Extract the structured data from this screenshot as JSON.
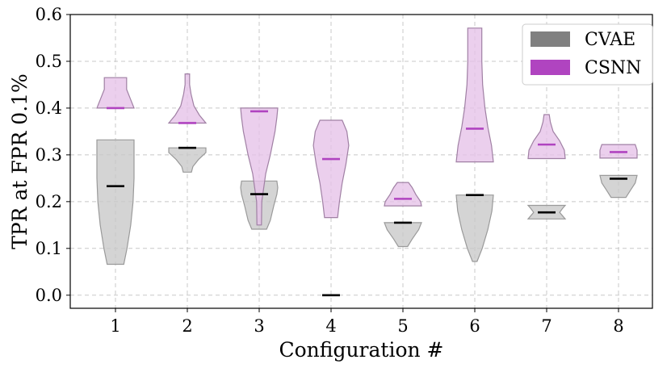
{
  "chart_data": {
    "type": "violin",
    "xlabel": "Configuration #",
    "ylabel": "TPR at FPR 0.1%",
    "categories": [
      "1",
      "2",
      "3",
      "4",
      "5",
      "6",
      "7",
      "8"
    ],
    "ylim": [
      -0.028,
      0.6
    ],
    "yticks": [
      "0.0",
      "0.1",
      "0.2",
      "0.3",
      "0.4",
      "0.5",
      "0.6"
    ],
    "grid": true,
    "legend_position": "top-right",
    "series": [
      {
        "name": "CVAE",
        "color": "#808080",
        "fill_color": "#c8c8c8",
        "edge_color": "#9a9a9a",
        "marker_color": "#000000",
        "violins": [
          {
            "min": 0.066,
            "max": 0.332,
            "mean": 0.233,
            "profile": [
              [
                0.066,
                0.45
              ],
              [
                0.1,
                0.62
              ],
              [
                0.15,
                0.82
              ],
              [
                0.2,
                0.95
              ],
              [
                0.25,
                1.0
              ],
              [
                0.3,
                1.0
              ],
              [
                0.332,
                1.0
              ]
            ]
          },
          {
            "min": 0.263,
            "max": 0.315,
            "mean": 0.315,
            "profile": [
              [
                0.263,
                0.22
              ],
              [
                0.275,
                0.3
              ],
              [
                0.29,
                0.6
              ],
              [
                0.305,
                1.0
              ],
              [
                0.315,
                1.0
              ]
            ]
          },
          {
            "min": 0.141,
            "max": 0.244,
            "mean": 0.216,
            "profile": [
              [
                0.141,
                0.4
              ],
              [
                0.16,
                0.6
              ],
              [
                0.19,
                0.78
              ],
              [
                0.216,
                0.95
              ],
              [
                0.23,
                1.0
              ],
              [
                0.244,
                0.95
              ]
            ]
          },
          {
            "min": 0.0,
            "max": 0.0,
            "mean": 0.0,
            "profile": [
              [
                0.0,
                0.0
              ]
            ]
          },
          {
            "min": 0.104,
            "max": 0.155,
            "mean": 0.155,
            "profile": [
              [
                0.104,
                0.25
              ],
              [
                0.12,
                0.5
              ],
              [
                0.14,
                0.85
              ],
              [
                0.155,
                1.0
              ]
            ]
          },
          {
            "min": 0.072,
            "max": 0.214,
            "mean": 0.214,
            "profile": [
              [
                0.072,
                0.12
              ],
              [
                0.1,
                0.4
              ],
              [
                0.14,
                0.7
              ],
              [
                0.18,
                0.92
              ],
              [
                0.214,
                1.0
              ]
            ]
          },
          {
            "min": 0.163,
            "max": 0.192,
            "mean": 0.177,
            "profile": [
              [
                0.163,
                1.0
              ],
              [
                0.17,
                0.85
              ],
              [
                0.177,
                0.7
              ],
              [
                0.185,
                0.85
              ],
              [
                0.192,
                1.0
              ]
            ]
          },
          {
            "min": 0.209,
            "max": 0.256,
            "mean": 0.249,
            "profile": [
              [
                0.209,
                0.4
              ],
              [
                0.225,
                0.65
              ],
              [
                0.24,
                0.9
              ],
              [
                0.256,
                1.0
              ]
            ]
          }
        ]
      },
      {
        "name": "CSNN",
        "color": "#b044c0",
        "fill_color": "#e6c2e8",
        "edge_color": "#a080a4",
        "marker_color": "#b044c0",
        "violins": [
          {
            "min": 0.4,
            "max": 0.465,
            "mean": 0.4,
            "profile": [
              [
                0.4,
                1.0
              ],
              [
                0.42,
                0.8
              ],
              [
                0.44,
                0.6
              ],
              [
                0.465,
                0.6
              ]
            ]
          },
          {
            "min": 0.368,
            "max": 0.473,
            "mean": 0.368,
            "profile": [
              [
                0.368,
                1.0
              ],
              [
                0.385,
                0.65
              ],
              [
                0.405,
                0.35
              ],
              [
                0.43,
                0.2
              ],
              [
                0.45,
                0.12
              ],
              [
                0.473,
                0.12
              ]
            ]
          },
          {
            "min": 0.15,
            "max": 0.4,
            "mean": 0.393,
            "profile": [
              [
                0.15,
                0.12
              ],
              [
                0.2,
                0.14
              ],
              [
                0.26,
                0.35
              ],
              [
                0.3,
                0.6
              ],
              [
                0.35,
                0.85
              ],
              [
                0.38,
                0.95
              ],
              [
                0.4,
                1.0
              ]
            ]
          },
          {
            "min": 0.166,
            "max": 0.374,
            "mean": 0.291,
            "profile": [
              [
                0.166,
                0.35
              ],
              [
                0.2,
                0.45
              ],
              [
                0.24,
                0.6
              ],
              [
                0.28,
                0.8
              ],
              [
                0.32,
                0.95
              ],
              [
                0.35,
                0.85
              ],
              [
                0.374,
                0.6
              ]
            ]
          },
          {
            "min": 0.191,
            "max": 0.241,
            "mean": 0.206,
            "profile": [
              [
                0.191,
                1.0
              ],
              [
                0.2,
                0.95
              ],
              [
                0.215,
                0.7
              ],
              [
                0.23,
                0.5
              ],
              [
                0.241,
                0.3
              ]
            ]
          },
          {
            "min": 0.285,
            "max": 0.571,
            "mean": 0.356,
            "profile": [
              [
                0.285,
                1.0
              ],
              [
                0.32,
                0.9
              ],
              [
                0.36,
                0.7
              ],
              [
                0.4,
                0.55
              ],
              [
                0.45,
                0.42
              ],
              [
                0.5,
                0.38
              ],
              [
                0.571,
                0.38
              ]
            ]
          },
          {
            "min": 0.292,
            "max": 0.386,
            "mean": 0.322,
            "profile": [
              [
                0.292,
                1.0
              ],
              [
                0.31,
                0.95
              ],
              [
                0.33,
                0.7
              ],
              [
                0.35,
                0.35
              ],
              [
                0.37,
                0.2
              ],
              [
                0.386,
                0.14
              ]
            ]
          },
          {
            "min": 0.293,
            "max": 0.322,
            "mean": 0.306,
            "profile": [
              [
                0.293,
                1.0
              ],
              [
                0.31,
                1.0
              ],
              [
                0.322,
                0.9
              ]
            ]
          }
        ]
      }
    ]
  }
}
